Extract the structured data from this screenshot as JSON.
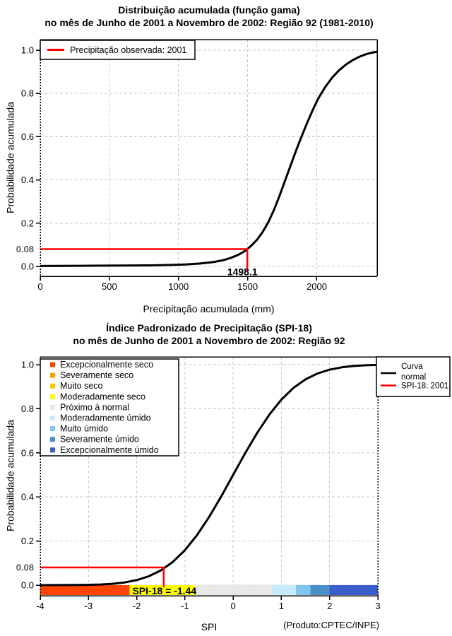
{
  "colors": {
    "grid": "#C9C9C9",
    "box": "#000000",
    "curve": "#000000",
    "annotation_red": "#FF0000",
    "prob_label_gray": "#595959"
  },
  "chart_data": [
    {
      "type": "line",
      "title": "Distribuição acumulada (função gama)",
      "subtitle": "no mês de Junho de 2001 a Novembro de 2002: Região 92 (1981-2010)",
      "xlabel": "Precipitação acumulada (mm)",
      "ylabel": "Probabilidade acumulada",
      "xlim": [
        0,
        2437
      ],
      "ylim": [
        0,
        1
      ],
      "xticks": [
        0,
        500,
        1000,
        1500,
        2000
      ],
      "xtick_labels": [
        "0",
        "500",
        "1000",
        "1500",
        "2000"
      ],
      "grid_x": [
        500,
        1000,
        1500,
        2000
      ],
      "yticks": [
        0,
        0.2,
        0.4,
        0.6,
        0.8,
        1.0
      ],
      "ytick_labels": [
        "0.0",
        "0.2",
        "0.4",
        "0.6",
        "0.8",
        "1.0"
      ],
      "grid": true,
      "legend": {
        "position": "top-left",
        "items": [
          {
            "label": "Precipitação observada: 2001",
            "color": "#FF0000",
            "type": "line"
          }
        ]
      },
      "series": [
        {
          "name": "Distribuição gama acumulada",
          "color": "#000000",
          "points": [
            [
              0,
              0.002
            ],
            [
              300,
              0.003
            ],
            [
              600,
              0.004
            ],
            [
              800,
              0.005
            ],
            [
              950,
              0.007
            ],
            [
              1050,
              0.009
            ],
            [
              1150,
              0.013
            ],
            [
              1250,
              0.02
            ],
            [
              1320,
              0.028
            ],
            [
              1380,
              0.04
            ],
            [
              1430,
              0.053
            ],
            [
              1470,
              0.067
            ],
            [
              1498,
              0.08
            ],
            [
              1530,
              0.098
            ],
            [
              1570,
              0.125
            ],
            [
              1610,
              0.16
            ],
            [
              1650,
              0.205
            ],
            [
              1690,
              0.26
            ],
            [
              1730,
              0.325
            ],
            [
              1770,
              0.395
            ],
            [
              1810,
              0.465
            ],
            [
              1850,
              0.535
            ],
            [
              1890,
              0.6
            ],
            [
              1930,
              0.663
            ],
            [
              1970,
              0.722
            ],
            [
              2010,
              0.775
            ],
            [
              2060,
              0.828
            ],
            [
              2110,
              0.872
            ],
            [
              2160,
              0.906
            ],
            [
              2210,
              0.933
            ],
            [
              2260,
              0.954
            ],
            [
              2310,
              0.97
            ],
            [
              2360,
              0.982
            ],
            [
              2410,
              0.99
            ],
            [
              2437,
              0.993
            ]
          ]
        }
      ],
      "annotation": {
        "x": 1498.1,
        "y": 0.08,
        "x_label": "1498.1",
        "y_label": "0.08",
        "color": "#FF0000"
      }
    },
    {
      "type": "line",
      "title": "Índice Padronizado de Precipitação (SPI-18)",
      "subtitle": "no mês de Junho de 2001 a Novembro de 2002: Região 92",
      "xlabel": "SPI",
      "ylabel": "Probabilidade acumulada",
      "credit": "(Produto:CPTEC/INPE)",
      "xlim": [
        -4,
        3
      ],
      "ylim": [
        0,
        1
      ],
      "xticks": [
        -4,
        -3,
        -2,
        -1,
        0,
        1,
        2,
        3
      ],
      "xtick_labels": [
        "-4",
        "-3",
        "-2",
        "-1",
        "0",
        "1",
        "2",
        "3"
      ],
      "grid_x": [
        -3,
        -2,
        -1,
        0,
        1,
        2
      ],
      "yticks": [
        0,
        0.2,
        0.4,
        0.6,
        0.8,
        1.0
      ],
      "ytick_labels": [
        "0.0",
        "0.2",
        "0.4",
        "0.6",
        "0.8",
        "1.0"
      ],
      "grid": true,
      "category_legend": [
        {
          "label": "Excepcionalmente seco",
          "color": "#FF4500"
        },
        {
          "label": "Severamente seco",
          "color": "#FFA000"
        },
        {
          "label": "Muito seco",
          "color": "#FFC800"
        },
        {
          "label": "Moderadamente seco",
          "color": "#FFFF00"
        },
        {
          "label": "Próximo à normal",
          "color": "#E8E8E8"
        },
        {
          "label": "Moderadamente úmido",
          "color": "#C6EBFA"
        },
        {
          "label": "Muito úmido",
          "color": "#82C6F0"
        },
        {
          "label": "Severamente úmido",
          "color": "#4A90C8"
        },
        {
          "label": "Excepcionalmente úmido",
          "color": "#3A5FCD"
        }
      ],
      "right_legend": [
        {
          "label": "Curva normal",
          "label_lines": [
            "Curva",
            "normal"
          ],
          "color": "#000000"
        },
        {
          "label": "SPI-18: 2001",
          "label_lines": [
            "SPI-18: 2001"
          ],
          "color": "#FF0000"
        }
      ],
      "color_bar": [
        {
          "from": -4,
          "to": -2,
          "color": "#FF4500"
        },
        {
          "from": -2,
          "to": -1.6,
          "color": "#FFA000"
        },
        {
          "from": -1.6,
          "to": -1.3,
          "color": "#FFC800"
        },
        {
          "from": -1.3,
          "to": -0.8,
          "color": "#FFFF00"
        },
        {
          "from": -0.8,
          "to": 0.8,
          "color": "#E8E8E8"
        },
        {
          "from": 0.8,
          "to": 1.3,
          "color": "#C6EBFA"
        },
        {
          "from": 1.3,
          "to": 1.6,
          "color": "#82C6F0"
        },
        {
          "from": 1.6,
          "to": 2,
          "color": "#4A90C8"
        },
        {
          "from": 2,
          "to": 3,
          "color": "#3A5FCD"
        }
      ],
      "series": [
        {
          "name": "Curva normal",
          "color": "#000000",
          "points": [
            [
              -4,
              0.0
            ],
            [
              -3.5,
              0.0002
            ],
            [
              -3,
              0.0013
            ],
            [
              -2.75,
              0.003
            ],
            [
              -2.5,
              0.0062
            ],
            [
              -2.25,
              0.0122
            ],
            [
              -2,
              0.0228
            ],
            [
              -1.75,
              0.0401
            ],
            [
              -1.5,
              0.0668
            ],
            [
              -1.25,
              0.1056
            ],
            [
              -1,
              0.1587
            ],
            [
              -0.75,
              0.2266
            ],
            [
              -0.5,
              0.3085
            ],
            [
              -0.25,
              0.4013
            ],
            [
              0,
              0.5
            ],
            [
              0.25,
              0.5987
            ],
            [
              0.5,
              0.6915
            ],
            [
              0.75,
              0.7734
            ],
            [
              1,
              0.8413
            ],
            [
              1.25,
              0.8944
            ],
            [
              1.5,
              0.9332
            ],
            [
              1.75,
              0.9599
            ],
            [
              2,
              0.9772
            ],
            [
              2.25,
              0.9878
            ],
            [
              2.5,
              0.9938
            ],
            [
              2.75,
              0.997
            ],
            [
              3,
              0.9987
            ]
          ]
        }
      ],
      "annotation": {
        "x": -1.44,
        "y": 0.08,
        "label": "SPI-18 = -1.44",
        "y_label": "0.08",
        "color": "#FF0000",
        "label_bg_from": -2.15,
        "label_bg_to": -0.8,
        "label_bg_color": "#FFFF00"
      }
    }
  ]
}
